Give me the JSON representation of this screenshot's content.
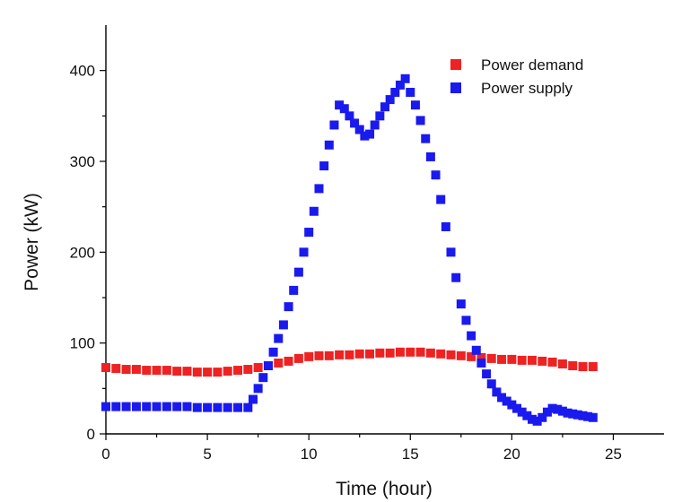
{
  "chart_data": {
    "type": "scatter",
    "title": "",
    "xlabel": "Time (hour)",
    "ylabel": "Power (kW)",
    "xlim": [
      0,
      27.5
    ],
    "ylim": [
      0,
      450
    ],
    "xticks": [
      0,
      5,
      10,
      15,
      20,
      25
    ],
    "yticks": [
      0,
      100,
      200,
      300,
      400
    ],
    "xtick_labels": [
      "0",
      "5",
      "10",
      "15",
      "20",
      "25"
    ],
    "ytick_labels": [
      "0",
      "100",
      "200",
      "300",
      "400"
    ],
    "legend_position": "top-right",
    "grid": false,
    "series": [
      {
        "name": "Power demand",
        "color": "#ee2222",
        "marker": "square",
        "points": [
          [
            0.0,
            73
          ],
          [
            0.5,
            72
          ],
          [
            1.0,
            71
          ],
          [
            1.5,
            71
          ],
          [
            2.0,
            70
          ],
          [
            2.5,
            70
          ],
          [
            3.0,
            70
          ],
          [
            3.5,
            69
          ],
          [
            4.0,
            69
          ],
          [
            4.5,
            68
          ],
          [
            5.0,
            68
          ],
          [
            5.5,
            68
          ],
          [
            6.0,
            69
          ],
          [
            6.5,
            70
          ],
          [
            7.0,
            71
          ],
          [
            7.5,
            73
          ],
          [
            8.0,
            75
          ],
          [
            8.5,
            78
          ],
          [
            9.0,
            80
          ],
          [
            9.5,
            83
          ],
          [
            10.0,
            85
          ],
          [
            10.5,
            86
          ],
          [
            11.0,
            86
          ],
          [
            11.5,
            87
          ],
          [
            12.0,
            87
          ],
          [
            12.5,
            88
          ],
          [
            13.0,
            88
          ],
          [
            13.5,
            89
          ],
          [
            14.0,
            89
          ],
          [
            14.5,
            90
          ],
          [
            15.0,
            90
          ],
          [
            15.5,
            90
          ],
          [
            16.0,
            89
          ],
          [
            16.5,
            88
          ],
          [
            17.0,
            87
          ],
          [
            17.5,
            86
          ],
          [
            18.0,
            85
          ],
          [
            18.5,
            84
          ],
          [
            19.0,
            83
          ],
          [
            19.5,
            82
          ],
          [
            20.0,
            82
          ],
          [
            20.5,
            81
          ],
          [
            21.0,
            81
          ],
          [
            21.5,
            80
          ],
          [
            22.0,
            79
          ],
          [
            22.5,
            77
          ],
          [
            23.0,
            75
          ],
          [
            23.5,
            74
          ],
          [
            24.0,
            74
          ]
        ]
      },
      {
        "name": "Power supply",
        "color": "#1a1aee",
        "marker": "square",
        "points": [
          [
            0.0,
            30
          ],
          [
            0.5,
            30
          ],
          [
            1.0,
            30
          ],
          [
            1.5,
            30
          ],
          [
            2.0,
            30
          ],
          [
            2.5,
            30
          ],
          [
            3.0,
            30
          ],
          [
            3.5,
            30
          ],
          [
            4.0,
            30
          ],
          [
            4.5,
            29
          ],
          [
            5.0,
            29
          ],
          [
            5.5,
            29
          ],
          [
            6.0,
            29
          ],
          [
            6.5,
            29
          ],
          [
            7.0,
            29
          ],
          [
            7.25,
            38
          ],
          [
            7.5,
            50
          ],
          [
            7.75,
            62
          ],
          [
            8.0,
            75
          ],
          [
            8.25,
            90
          ],
          [
            8.5,
            105
          ],
          [
            8.75,
            120
          ],
          [
            9.0,
            140
          ],
          [
            9.25,
            158
          ],
          [
            9.5,
            178
          ],
          [
            9.75,
            200
          ],
          [
            10.0,
            222
          ],
          [
            10.25,
            245
          ],
          [
            10.5,
            270
          ],
          [
            10.75,
            295
          ],
          [
            11.0,
            318
          ],
          [
            11.25,
            340
          ],
          [
            11.5,
            362
          ],
          [
            11.75,
            358
          ],
          [
            12.0,
            350
          ],
          [
            12.25,
            342
          ],
          [
            12.5,
            335
          ],
          [
            12.75,
            328
          ],
          [
            13.0,
            330
          ],
          [
            13.25,
            340
          ],
          [
            13.5,
            350
          ],
          [
            13.75,
            360
          ],
          [
            14.0,
            368
          ],
          [
            14.25,
            376
          ],
          [
            14.5,
            384
          ],
          [
            14.75,
            391
          ],
          [
            15.0,
            376
          ],
          [
            15.25,
            362
          ],
          [
            15.5,
            345
          ],
          [
            15.75,
            325
          ],
          [
            16.0,
            305
          ],
          [
            16.25,
            285
          ],
          [
            16.5,
            258
          ],
          [
            16.75,
            228
          ],
          [
            17.0,
            200
          ],
          [
            17.25,
            172
          ],
          [
            17.5,
            143
          ],
          [
            17.75,
            125
          ],
          [
            18.0,
            108
          ],
          [
            18.25,
            92
          ],
          [
            18.5,
            78
          ],
          [
            18.75,
            66
          ],
          [
            19.0,
            55
          ],
          [
            19.25,
            46
          ],
          [
            19.5,
            40
          ],
          [
            19.75,
            36
          ],
          [
            20.0,
            32
          ],
          [
            20.25,
            28
          ],
          [
            20.5,
            24
          ],
          [
            20.75,
            20
          ],
          [
            21.0,
            16
          ],
          [
            21.25,
            14
          ],
          [
            21.5,
            18
          ],
          [
            21.75,
            24
          ],
          [
            22.0,
            28
          ],
          [
            22.25,
            27
          ],
          [
            22.5,
            25
          ],
          [
            22.75,
            23
          ],
          [
            23.0,
            22
          ],
          [
            23.25,
            21
          ],
          [
            23.5,
            20
          ],
          [
            23.75,
            19
          ],
          [
            24.0,
            18
          ]
        ]
      }
    ]
  }
}
